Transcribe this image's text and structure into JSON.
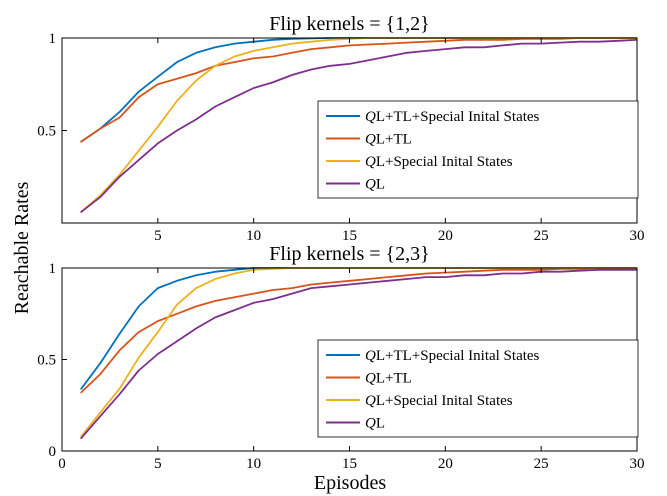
{
  "figure": {
    "ylabel": "Reachable Rates",
    "xlabel": "Episodes"
  },
  "chart_data": [
    {
      "type": "line",
      "title": "Flip kernels = {1,2}",
      "xlim": [
        0,
        30
      ],
      "ylim": [
        0,
        1
      ],
      "xticks": [
        5,
        10,
        15,
        20,
        25,
        30
      ],
      "yticks": [
        0.5,
        1
      ],
      "yticklabels": [
        "0.5",
        "1"
      ],
      "grid": false,
      "legend_position": "bottom-right",
      "x": [
        1,
        2,
        3,
        4,
        5,
        6,
        7,
        8,
        9,
        10,
        11,
        12,
        13,
        14,
        15,
        16,
        17,
        18,
        19,
        20,
        21,
        22,
        23,
        24,
        25,
        26,
        27,
        28,
        29,
        30
      ],
      "series": [
        {
          "name": "QL+TL+Special Inital States",
          "color": "#0072BD",
          "values": [
            0.44,
            0.51,
            0.6,
            0.71,
            0.79,
            0.87,
            0.92,
            0.95,
            0.97,
            0.98,
            0.99,
            0.995,
            0.998,
            1,
            1,
            1,
            1,
            1,
            1,
            1,
            1,
            1,
            1,
            1,
            1,
            1,
            1,
            1,
            1,
            1
          ]
        },
        {
          "name": "QL+TL",
          "color": "#D95319",
          "values": [
            0.44,
            0.51,
            0.57,
            0.68,
            0.75,
            0.78,
            0.81,
            0.85,
            0.87,
            0.89,
            0.9,
            0.92,
            0.94,
            0.95,
            0.96,
            0.965,
            0.97,
            0.975,
            0.98,
            0.985,
            0.99,
            0.99,
            0.99,
            0.995,
            0.995,
            0.995,
            1,
            1,
            1,
            1
          ]
        },
        {
          "name": "QL+Special Inital States",
          "color": "#EDB120",
          "values": [
            0.06,
            0.15,
            0.26,
            0.39,
            0.52,
            0.66,
            0.77,
            0.85,
            0.9,
            0.93,
            0.95,
            0.97,
            0.98,
            0.99,
            0.995,
            1,
            1,
            1,
            1,
            1,
            1,
            1,
            1,
            1,
            1,
            1,
            1,
            1,
            1,
            1
          ]
        },
        {
          "name": "QL",
          "color": "#7E2F8E",
          "values": [
            0.06,
            0.14,
            0.25,
            0.34,
            0.43,
            0.5,
            0.56,
            0.63,
            0.68,
            0.73,
            0.76,
            0.8,
            0.83,
            0.85,
            0.86,
            0.88,
            0.9,
            0.92,
            0.93,
            0.94,
            0.95,
            0.95,
            0.96,
            0.97,
            0.97,
            0.975,
            0.98,
            0.98,
            0.985,
            0.99
          ]
        }
      ]
    },
    {
      "type": "line",
      "title": "Flip kernels = {2,3}",
      "xlim": [
        0,
        30
      ],
      "ylim": [
        0,
        1
      ],
      "xticks": [
        0,
        5,
        10,
        15,
        20,
        25,
        30
      ],
      "yticks": [
        0,
        0.5,
        1
      ],
      "yticklabels": [
        "0",
        "0.5",
        "1"
      ],
      "grid": false,
      "legend_position": "bottom-right",
      "x": [
        1,
        2,
        3,
        4,
        5,
        6,
        7,
        8,
        9,
        10,
        11,
        12,
        13,
        14,
        15,
        16,
        17,
        18,
        19,
        20,
        21,
        22,
        23,
        24,
        25,
        26,
        27,
        28,
        29,
        30
      ],
      "series": [
        {
          "name": "QL+TL+Special Inital States",
          "color": "#0072BD",
          "values": [
            0.34,
            0.48,
            0.64,
            0.79,
            0.89,
            0.93,
            0.96,
            0.98,
            0.99,
            1,
            1,
            1,
            1,
            1,
            1,
            1,
            1,
            1,
            1,
            1,
            1,
            1,
            1,
            1,
            1,
            1,
            1,
            1,
            1,
            1
          ]
        },
        {
          "name": "QL+TL",
          "color": "#D95319",
          "values": [
            0.32,
            0.42,
            0.55,
            0.65,
            0.71,
            0.75,
            0.79,
            0.82,
            0.84,
            0.86,
            0.88,
            0.89,
            0.91,
            0.92,
            0.93,
            0.94,
            0.95,
            0.96,
            0.97,
            0.975,
            0.98,
            0.985,
            0.99,
            0.99,
            0.99,
            0.995,
            0.995,
            1,
            1,
            1
          ]
        },
        {
          "name": "QL+Special Inital States",
          "color": "#EDB120",
          "values": [
            0.08,
            0.21,
            0.34,
            0.51,
            0.65,
            0.8,
            0.89,
            0.94,
            0.97,
            0.99,
            0.995,
            1,
            1,
            1,
            1,
            1,
            1,
            1,
            1,
            1,
            1,
            1,
            1,
            1,
            1,
            1,
            1,
            1,
            1,
            1
          ]
        },
        {
          "name": "QL",
          "color": "#7E2F8E",
          "values": [
            0.07,
            0.19,
            0.31,
            0.44,
            0.53,
            0.6,
            0.67,
            0.73,
            0.77,
            0.81,
            0.83,
            0.86,
            0.89,
            0.9,
            0.91,
            0.92,
            0.93,
            0.94,
            0.95,
            0.95,
            0.96,
            0.96,
            0.97,
            0.97,
            0.98,
            0.98,
            0.985,
            0.99,
            0.99,
            0.99
          ]
        }
      ]
    }
  ]
}
